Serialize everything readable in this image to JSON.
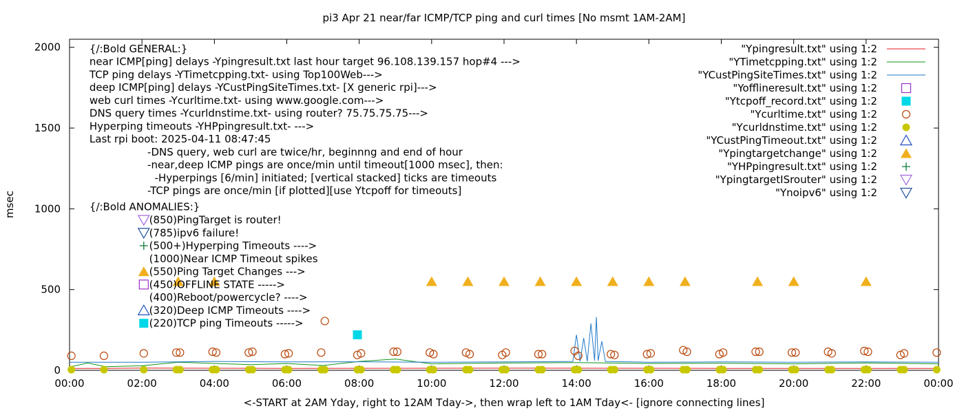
{
  "chart_data": {
    "type": "line",
    "title": "pi3 Apr 21  near/far ICMP/TCP ping and curl times [No msmt 1AM-2AM]",
    "xlabel": "<-START at 2AM Yday, right to 12AM Tday->, then wrap left to 1AM Tday<- [ignore connecting lines]",
    "ylabel": "msec",
    "xlim": [
      0,
      24
    ],
    "ylim": [
      0,
      2050
    ],
    "x_ticks": [
      {
        "value": 0,
        "label": "00:00"
      },
      {
        "value": 2,
        "label": "02:00"
      },
      {
        "value": 4,
        "label": "04:00"
      },
      {
        "value": 6,
        "label": "06:00"
      },
      {
        "value": 8,
        "label": "08:00"
      },
      {
        "value": 10,
        "label": "10:00"
      },
      {
        "value": 12,
        "label": "12:00"
      },
      {
        "value": 14,
        "label": "14:00"
      },
      {
        "value": 16,
        "label": "16:00"
      },
      {
        "value": 18,
        "label": "18:00"
      },
      {
        "value": 20,
        "label": "20:00"
      },
      {
        "value": 22,
        "label": "22:00"
      },
      {
        "value": 24,
        "label": "00:00"
      }
    ],
    "y_ticks": [
      {
        "value": 0,
        "label": "0"
      },
      {
        "value": 500,
        "label": "500"
      },
      {
        "value": 1000,
        "label": "1000"
      },
      {
        "value": 1500,
        "label": "1500"
      },
      {
        "value": 2000,
        "label": "2000"
      }
    ],
    "legend_position": "top-right",
    "series": [
      {
        "name": "\"Ypingresult.txt\" using 1:2",
        "style": "line",
        "color": "#e41a1c",
        "points": [
          [
            0,
            12
          ],
          [
            1,
            12
          ],
          [
            2,
            14
          ],
          [
            6,
            12
          ],
          [
            12,
            13
          ],
          [
            18,
            12
          ],
          [
            24,
            12
          ]
        ]
      },
      {
        "name": "\"YTimetcpping.txt\" using 1:2",
        "style": "line",
        "color": "#109618",
        "points": [
          [
            0,
            20
          ],
          [
            0.5,
            45
          ],
          [
            1,
            22
          ],
          [
            2,
            28
          ],
          [
            3,
            50
          ],
          [
            5,
            35
          ],
          [
            6,
            42
          ],
          [
            7,
            30
          ],
          [
            8,
            55
          ],
          [
            9,
            70
          ],
          [
            10,
            40
          ],
          [
            12,
            45
          ],
          [
            14,
            48
          ],
          [
            16,
            42
          ],
          [
            18,
            44
          ],
          [
            20,
            40
          ],
          [
            22,
            46
          ],
          [
            24,
            40
          ]
        ]
      },
      {
        "name": "\"YCustPingSiteTimes.txt\" using 1:2",
        "style": "line",
        "color": "#1f78c8",
        "points": [
          [
            0,
            50
          ],
          [
            2,
            50
          ],
          [
            4,
            55
          ],
          [
            6,
            52
          ],
          [
            8,
            53
          ],
          [
            10,
            50
          ],
          [
            12,
            52
          ],
          [
            13.9,
            55
          ],
          [
            14.0,
            220
          ],
          [
            14.1,
            55
          ],
          [
            14.2,
            200
          ],
          [
            14.3,
            55
          ],
          [
            14.4,
            290
          ],
          [
            14.5,
            60
          ],
          [
            14.55,
            330
          ],
          [
            14.6,
            60
          ],
          [
            14.7,
            180
          ],
          [
            14.8,
            55
          ],
          [
            16,
            50
          ],
          [
            18,
            52
          ],
          [
            20,
            50
          ],
          [
            22,
            52
          ],
          [
            24,
            50
          ]
        ]
      },
      {
        "name": "\"Yofflineresult.txt\" using 1:2",
        "style": "open-square",
        "color": "#9b30c8",
        "points": []
      },
      {
        "name": "\"Ytcpoff_record.txt\" using 1:2",
        "style": "filled-square",
        "color": "#00d8e8",
        "points": [
          [
            7.95,
            220
          ]
        ]
      },
      {
        "name": "\"Ycurltime.txt\" using 1:2",
        "style": "open-circle",
        "color": "#b8460a",
        "points": [
          [
            0.05,
            90
          ],
          [
            0.95,
            90
          ],
          [
            2.05,
            105
          ],
          [
            2.95,
            110
          ],
          [
            3.05,
            110
          ],
          [
            3.95,
            115
          ],
          [
            4.05,
            110
          ],
          [
            4.95,
            110
          ],
          [
            5.05,
            115
          ],
          [
            5.95,
            100
          ],
          [
            6.05,
            105
          ],
          [
            6.95,
            110
          ],
          [
            7.05,
            305
          ],
          [
            7.95,
            95
          ],
          [
            8.05,
            105
          ],
          [
            8.95,
            115
          ],
          [
            9.05,
            115
          ],
          [
            9.95,
            110
          ],
          [
            10.05,
            100
          ],
          [
            10.95,
            110
          ],
          [
            11.05,
            100
          ],
          [
            11.95,
            95
          ],
          [
            12.05,
            110
          ],
          [
            12.95,
            100
          ],
          [
            13.05,
            100
          ],
          [
            13.95,
            120
          ],
          [
            14.05,
            90
          ],
          [
            14.95,
            100
          ],
          [
            15.05,
            95
          ],
          [
            15.95,
            100
          ],
          [
            16.05,
            105
          ],
          [
            16.95,
            125
          ],
          [
            17.05,
            115
          ],
          [
            17.95,
            100
          ],
          [
            18.05,
            110
          ],
          [
            18.95,
            115
          ],
          [
            19.05,
            115
          ],
          [
            19.95,
            110
          ],
          [
            20.05,
            110
          ],
          [
            20.95,
            115
          ],
          [
            21.05,
            105
          ],
          [
            21.95,
            120
          ],
          [
            22.05,
            115
          ],
          [
            22.95,
            95
          ],
          [
            23.05,
            105
          ],
          [
            23.95,
            110
          ]
        ]
      },
      {
        "name": "\"Ycurldnstime.txt\" using 1:2",
        "style": "filled-circle",
        "color": "#c8c800",
        "points": [
          [
            0.05,
            4
          ],
          [
            0.95,
            4
          ],
          [
            2.05,
            4
          ],
          [
            2.95,
            4
          ],
          [
            3.05,
            4
          ],
          [
            3.95,
            4
          ],
          [
            4.05,
            4
          ],
          [
            4.95,
            4
          ],
          [
            5.05,
            4
          ],
          [
            5.95,
            4
          ],
          [
            6.05,
            4
          ],
          [
            6.95,
            4
          ],
          [
            7.05,
            4
          ],
          [
            7.95,
            4
          ],
          [
            8.05,
            4
          ],
          [
            8.95,
            4
          ],
          [
            9.05,
            4
          ],
          [
            9.95,
            4
          ],
          [
            10.05,
            4
          ],
          [
            10.95,
            4
          ],
          [
            11.05,
            4
          ],
          [
            11.95,
            4
          ],
          [
            12.05,
            4
          ],
          [
            12.95,
            4
          ],
          [
            13.05,
            4
          ],
          [
            13.95,
            4
          ],
          [
            14.05,
            4
          ],
          [
            14.95,
            4
          ],
          [
            15.05,
            4
          ],
          [
            15.95,
            4
          ],
          [
            16.05,
            4
          ],
          [
            16.95,
            4
          ],
          [
            17.05,
            4
          ],
          [
            17.95,
            4
          ],
          [
            18.05,
            4
          ],
          [
            18.95,
            4
          ],
          [
            19.05,
            4
          ],
          [
            19.95,
            4
          ],
          [
            20.05,
            4
          ],
          [
            20.95,
            4
          ],
          [
            21.05,
            4
          ],
          [
            21.95,
            4
          ],
          [
            22.05,
            4
          ],
          [
            22.95,
            4
          ],
          [
            23.05,
            4
          ],
          [
            23.95,
            4
          ]
        ]
      },
      {
        "name": "\"YCustPingTimeout.txt\" using 1:2",
        "style": "open-triangle-up",
        "color": "#1f4fbf",
        "points": []
      },
      {
        "name": "\"Ypingtargetchange\" using 1:2",
        "style": "filled-triangle-up",
        "color": "#f0b01e",
        "points": [
          [
            3,
            550
          ],
          [
            4,
            550
          ],
          [
            10,
            550
          ],
          [
            11,
            550
          ],
          [
            12,
            550
          ],
          [
            13,
            550
          ],
          [
            14,
            550
          ],
          [
            15,
            550
          ],
          [
            16,
            550
          ],
          [
            17,
            550
          ],
          [
            19,
            550
          ],
          [
            20,
            550
          ],
          [
            22,
            550
          ]
        ]
      },
      {
        "name": "\"YHPpingresult.txt\" using 1:2",
        "style": "plus",
        "color": "#0a7a3a",
        "points": []
      },
      {
        "name": "\"YpingtargetISrouter\" using 1:2",
        "style": "open-triangle-down",
        "color": "#a36ae0",
        "points": []
      },
      {
        "name": "\"Ynoipv6\" using 1:2",
        "style": "open-triangle-down",
        "color": "#1f4f9f",
        "points": []
      }
    ],
    "annotations": {
      "general_lines": [
        {
          "text": "{/:Bold GENERAL:}",
          "y": 1970,
          "x": 0.55
        },
        {
          "text": "near ICMP[ping] delays -Ypingresult.txt last hour target 96.108.139.157 hop#4 --->",
          "y": 1890,
          "x": 0.55
        },
        {
          "text": "TCP ping delays -YTimetcpping.txt- using Top100Web--->",
          "y": 1810,
          "x": 0.55
        },
        {
          "text": "deep ICMP[ping] delays -YCustPingSiteTimes.txt- [X generic rpi]--->",
          "y": 1730,
          "x": 0.55
        },
        {
          "text": "web curl times -Ycurltime.txt- using www.google.com--->",
          "y": 1650,
          "x": 0.55
        },
        {
          "text": "DNS query times -Ycurldnstime.txt- using router? 75.75.75.75--->",
          "y": 1570,
          "x": 0.55
        },
        {
          "text": "Hyperping timeouts -YHPpingresult.txt- --->",
          "y": 1490,
          "x": 0.55
        },
        {
          "text": "Last rpi boot: 2025-04-11 08:47:45",
          "y": 1410,
          "x": 0.55
        },
        {
          "text": "-DNS query, web curl are twice/hr, beginnng and end of hour",
          "y": 1330,
          "x": 2.15
        },
        {
          "text": "-near,deep ICMP pings are once/min until timeout[1000 msec], then:",
          "y": 1250,
          "x": 2.15
        },
        {
          "text": "-Hyperpings [6/min] initiated; [vertical stacked] ticks are timeouts",
          "y": 1170,
          "x": 2.35
        },
        {
          "text": "-TCP pings are once/min [if plotted][use Ytcpoff for timeouts]",
          "y": 1090,
          "x": 2.15
        },
        {
          "text": "{/:Bold ANOMALIES:}",
          "y": 990,
          "x": 0.55
        }
      ],
      "anomaly_lines": [
        {
          "text": "(850)PingTarget is router!",
          "y": 910,
          "marker": "open-triangle-down",
          "color": "#a36ae0"
        },
        {
          "text": "(785)ipv6 failure!",
          "y": 830,
          "marker": "open-triangle-down",
          "color": "#1f4f9f"
        },
        {
          "text": "(500+)Hyperping Timeouts ---->",
          "y": 750,
          "marker": "plus",
          "color": "#0a7a3a"
        },
        {
          "text": "(1000)Near ICMP Timeout spikes",
          "y": 670,
          "marker": "none",
          "color": "#000000"
        },
        {
          "text": "(550)Ping Target Changes --->",
          "y": 590,
          "marker": "filled-triangle-up",
          "color": "#f0b01e"
        },
        {
          "text": "(450)OFFLINE STATE ----->",
          "y": 510,
          "marker": "open-square",
          "color": "#9b30c8"
        },
        {
          "text": "(400)Reboot/powercycle? ---->",
          "y": 430,
          "marker": "none",
          "color": "#000000"
        },
        {
          "text": "(320)Deep ICMP Timeouts ---->",
          "y": 350,
          "marker": "open-triangle-up",
          "color": "#1f4fbf"
        },
        {
          "text": "(220)TCP ping Timeouts ----->",
          "y": 270,
          "marker": "filled-square",
          "color": "#00d8e8"
        }
      ],
      "anomaly_marker_x": 2.05,
      "anomaly_text_x": 2.2
    }
  }
}
